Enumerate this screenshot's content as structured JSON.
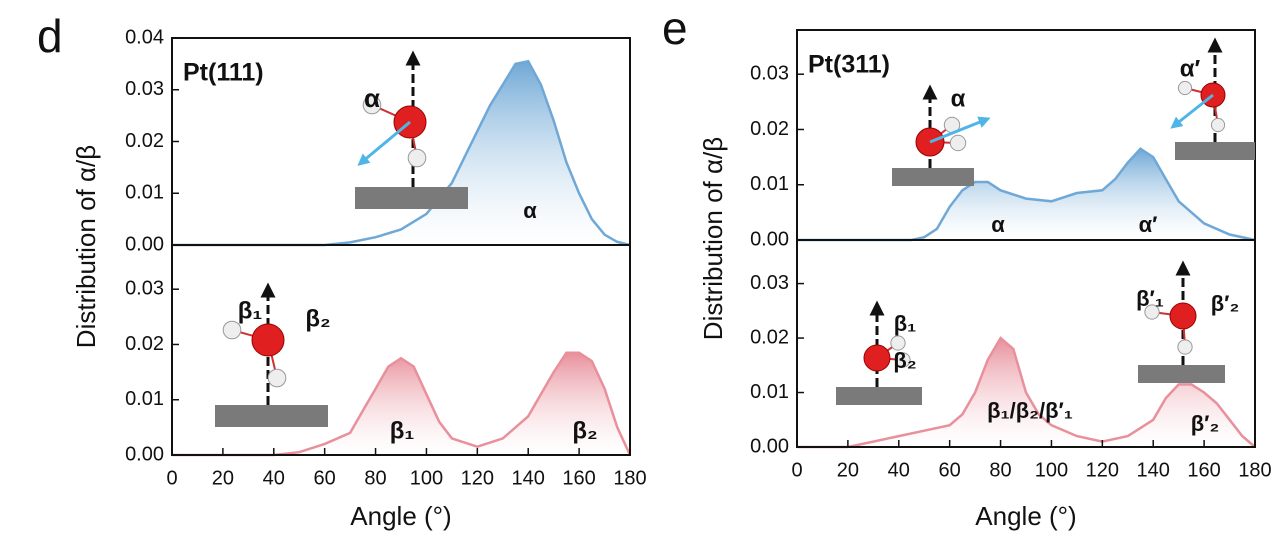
{
  "chart_data": [
    {
      "type": "area",
      "panel_label": "d",
      "title": "Pt(111)",
      "ylabel": "Distribution of α/β",
      "color": "#6fa8d6",
      "x": [
        0,
        10,
        20,
        30,
        40,
        50,
        60,
        70,
        80,
        90,
        100,
        105,
        110,
        115,
        120,
        125,
        130,
        135,
        140,
        145,
        150,
        155,
        160,
        165,
        170,
        175,
        180
      ],
      "values": [
        0,
        0,
        0,
        0,
        0,
        0,
        0,
        0.0005,
        0.0015,
        0.003,
        0.006,
        0.009,
        0.012,
        0.017,
        0.022,
        0.027,
        0.031,
        0.035,
        0.0355,
        0.031,
        0.024,
        0.016,
        0.01,
        0.005,
        0.002,
        0.0006,
        0
      ],
      "xlim": [
        0,
        180
      ],
      "ylim": [
        0,
        0.04
      ],
      "yticks": [
        {
          "value": 0,
          "label": "0.00"
        },
        0.01,
        0.02,
        0.03,
        0.04
      ],
      "annotations": [
        "α",
        "α"
      ]
    },
    {
      "type": "area",
      "xlabel": "Angle (°)",
      "color": "#e8909c",
      "x": [
        0,
        10,
        20,
        30,
        40,
        50,
        60,
        70,
        75,
        80,
        85,
        90,
        95,
        100,
        105,
        110,
        120,
        130,
        140,
        145,
        150,
        155,
        160,
        165,
        170,
        175,
        180
      ],
      "values": [
        0,
        0,
        0,
        0,
        0,
        0.0005,
        0.002,
        0.004,
        0.008,
        0.012,
        0.016,
        0.0175,
        0.016,
        0.011,
        0.006,
        0.003,
        0.0015,
        0.003,
        0.007,
        0.011,
        0.015,
        0.0185,
        0.0185,
        0.017,
        0.012,
        0.005,
        0
      ],
      "xlim": [
        0,
        180
      ],
      "ylim": [
        0,
        0.038
      ],
      "xticks": [
        0,
        20,
        40,
        60,
        80,
        100,
        120,
        140,
        160,
        180
      ],
      "yticks": [
        {
          "value": 0,
          "label": "0.00"
        },
        0.01,
        0.02,
        0.03
      ],
      "annotations": [
        "β₁",
        "β₂",
        "β₁",
        "β₂"
      ]
    },
    {
      "type": "area",
      "panel_label": "e",
      "title": "Pt(311)",
      "ylabel": "Distribution of α/β",
      "color": "#6fa8d6",
      "x": [
        0,
        10,
        20,
        30,
        40,
        45,
        50,
        55,
        60,
        65,
        70,
        75,
        80,
        90,
        100,
        110,
        120,
        125,
        130,
        135,
        140,
        145,
        150,
        160,
        170,
        180
      ],
      "values": [
        0,
        0,
        0,
        0,
        0,
        0,
        0.0005,
        0.002,
        0.006,
        0.009,
        0.0105,
        0.0105,
        0.009,
        0.0075,
        0.007,
        0.0085,
        0.009,
        0.011,
        0.014,
        0.0165,
        0.015,
        0.011,
        0.007,
        0.003,
        0.001,
        0
      ],
      "xlim": [
        0,
        180
      ],
      "ylim": [
        0,
        0.038
      ],
      "yticks": [
        {
          "value": 0,
          "label": "0.00"
        },
        0.01,
        0.02,
        0.03
      ],
      "annotations": [
        "α",
        "α′",
        "α",
        "α′"
      ]
    },
    {
      "type": "area",
      "xlabel": "Angle (°)",
      "color": "#e8909c",
      "x": [
        0,
        10,
        20,
        30,
        40,
        50,
        60,
        65,
        70,
        75,
        80,
        85,
        90,
        95,
        100,
        110,
        120,
        130,
        140,
        145,
        150,
        155,
        160,
        165,
        170,
        175,
        180
      ],
      "values": [
        0,
        0,
        0,
        0.001,
        0.002,
        0.003,
        0.004,
        0.006,
        0.01,
        0.016,
        0.02,
        0.018,
        0.01,
        0.006,
        0.004,
        0.002,
        0.001,
        0.002,
        0.005,
        0.009,
        0.0115,
        0.0115,
        0.01,
        0.008,
        0.005,
        0.002,
        0
      ],
      "xlim": [
        0,
        180
      ],
      "ylim": [
        0,
        0.038
      ],
      "xticks": [
        0,
        20,
        40,
        60,
        80,
        100,
        120,
        140,
        160,
        180
      ],
      "yticks": [
        {
          "value": 0,
          "label": "0.00"
        },
        0.01,
        0.02,
        0.03
      ],
      "annotations": [
        "β₁/β₂/β′₁",
        "β′₂",
        "β₁",
        "β₂",
        "β′₁",
        "β′₂"
      ]
    }
  ]
}
